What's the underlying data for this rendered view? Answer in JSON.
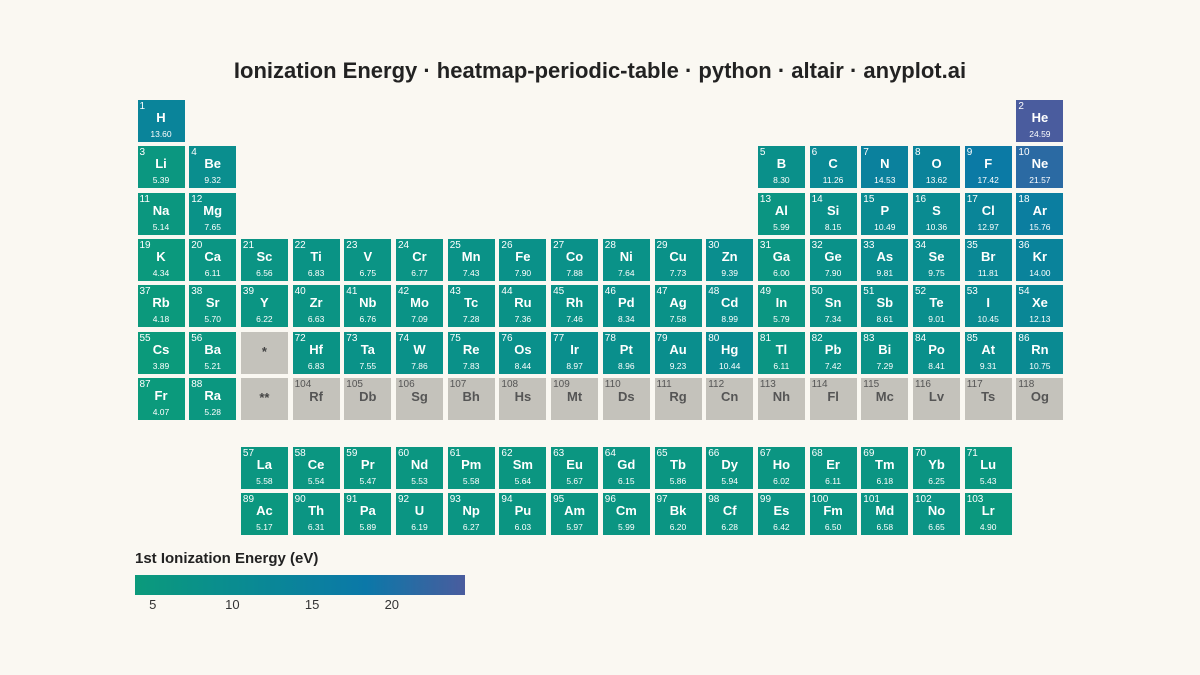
{
  "title": "Ionization Energy · heatmap-periodic-table · python · altair · anyplot.ai",
  "colors": {
    "low": "#0B9A7B",
    "mid": "#0B78A8",
    "high": "#4A5C9E",
    "missing": "#C4C2BB",
    "background": "#FAF8F2"
  },
  "legend": {
    "title": "1st Ionization Energy (eV)",
    "ticks": [
      5,
      10,
      15,
      20
    ],
    "range": [
      3.89,
      24.59
    ]
  },
  "chart_data": {
    "type": "heatmap",
    "title": "Ionization Energy · heatmap-periodic-table · python · altair · anyplot.ai",
    "value_label": "1st Ionization Energy (eV)",
    "value_range": [
      3.89,
      24.59
    ],
    "lanthanide_marker": "*",
    "actinide_marker": "**",
    "elements": [
      {
        "z": 1,
        "symbol": "H",
        "group": 1,
        "period": 1,
        "value": 13.6
      },
      {
        "z": 2,
        "symbol": "He",
        "group": 18,
        "period": 1,
        "value": 24.59
      },
      {
        "z": 3,
        "symbol": "Li",
        "group": 1,
        "period": 2,
        "value": 5.39
      },
      {
        "z": 4,
        "symbol": "Be",
        "group": 2,
        "period": 2,
        "value": 9.32
      },
      {
        "z": 5,
        "symbol": "B",
        "group": 13,
        "period": 2,
        "value": 8.3
      },
      {
        "z": 6,
        "symbol": "C",
        "group": 14,
        "period": 2,
        "value": 11.26
      },
      {
        "z": 7,
        "symbol": "N",
        "group": 15,
        "period": 2,
        "value": 14.53
      },
      {
        "z": 8,
        "symbol": "O",
        "group": 16,
        "period": 2,
        "value": 13.62
      },
      {
        "z": 9,
        "symbol": "F",
        "group": 17,
        "period": 2,
        "value": 17.42
      },
      {
        "z": 10,
        "symbol": "Ne",
        "group": 18,
        "period": 2,
        "value": 21.57
      },
      {
        "z": 11,
        "symbol": "Na",
        "group": 1,
        "period": 3,
        "value": 5.14
      },
      {
        "z": 12,
        "symbol": "Mg",
        "group": 2,
        "period": 3,
        "value": 7.65
      },
      {
        "z": 13,
        "symbol": "Al",
        "group": 13,
        "period": 3,
        "value": 5.99
      },
      {
        "z": 14,
        "symbol": "Si",
        "group": 14,
        "period": 3,
        "value": 8.15
      },
      {
        "z": 15,
        "symbol": "P",
        "group": 15,
        "period": 3,
        "value": 10.49
      },
      {
        "z": 16,
        "symbol": "S",
        "group": 16,
        "period": 3,
        "value": 10.36
      },
      {
        "z": 17,
        "symbol": "Cl",
        "group": 17,
        "period": 3,
        "value": 12.97
      },
      {
        "z": 18,
        "symbol": "Ar",
        "group": 18,
        "period": 3,
        "value": 15.76
      },
      {
        "z": 19,
        "symbol": "K",
        "group": 1,
        "period": 4,
        "value": 4.34
      },
      {
        "z": 20,
        "symbol": "Ca",
        "group": 2,
        "period": 4,
        "value": 6.11
      },
      {
        "z": 21,
        "symbol": "Sc",
        "group": 3,
        "period": 4,
        "value": 6.56
      },
      {
        "z": 22,
        "symbol": "Ti",
        "group": 4,
        "period": 4,
        "value": 6.83
      },
      {
        "z": 23,
        "symbol": "V",
        "group": 5,
        "period": 4,
        "value": 6.75
      },
      {
        "z": 24,
        "symbol": "Cr",
        "group": 6,
        "period": 4,
        "value": 6.77
      },
      {
        "z": 25,
        "symbol": "Mn",
        "group": 7,
        "period": 4,
        "value": 7.43
      },
      {
        "z": 26,
        "symbol": "Fe",
        "group": 8,
        "period": 4,
        "value": 7.9
      },
      {
        "z": 27,
        "symbol": "Co",
        "group": 9,
        "period": 4,
        "value": 7.88
      },
      {
        "z": 28,
        "symbol": "Ni",
        "group": 10,
        "period": 4,
        "value": 7.64
      },
      {
        "z": 29,
        "symbol": "Cu",
        "group": 11,
        "period": 4,
        "value": 7.73
      },
      {
        "z": 30,
        "symbol": "Zn",
        "group": 12,
        "period": 4,
        "value": 9.39
      },
      {
        "z": 31,
        "symbol": "Ga",
        "group": 13,
        "period": 4,
        "value": 6.0
      },
      {
        "z": 32,
        "symbol": "Ge",
        "group": 14,
        "period": 4,
        "value": 7.9
      },
      {
        "z": 33,
        "symbol": "As",
        "group": 15,
        "period": 4,
        "value": 9.81
      },
      {
        "z": 34,
        "symbol": "Se",
        "group": 16,
        "period": 4,
        "value": 9.75
      },
      {
        "z": 35,
        "symbol": "Br",
        "group": 17,
        "period": 4,
        "value": 11.81
      },
      {
        "z": 36,
        "symbol": "Kr",
        "group": 18,
        "period": 4,
        "value": 14.0
      },
      {
        "z": 37,
        "symbol": "Rb",
        "group": 1,
        "period": 5,
        "value": 4.18
      },
      {
        "z": 38,
        "symbol": "Sr",
        "group": 2,
        "period": 5,
        "value": 5.7
      },
      {
        "z": 39,
        "symbol": "Y",
        "group": 3,
        "period": 5,
        "value": 6.22
      },
      {
        "z": 40,
        "symbol": "Zr",
        "group": 4,
        "period": 5,
        "value": 6.63
      },
      {
        "z": 41,
        "symbol": "Nb",
        "group": 5,
        "period": 5,
        "value": 6.76
      },
      {
        "z": 42,
        "symbol": "Mo",
        "group": 6,
        "period": 5,
        "value": 7.09
      },
      {
        "z": 43,
        "symbol": "Tc",
        "group": 7,
        "period": 5,
        "value": 7.28
      },
      {
        "z": 44,
        "symbol": "Ru",
        "group": 8,
        "period": 5,
        "value": 7.36
      },
      {
        "z": 45,
        "symbol": "Rh",
        "group": 9,
        "period": 5,
        "value": 7.46
      },
      {
        "z": 46,
        "symbol": "Pd",
        "group": 10,
        "period": 5,
        "value": 8.34
      },
      {
        "z": 47,
        "symbol": "Ag",
        "group": 11,
        "period": 5,
        "value": 7.58
      },
      {
        "z": 48,
        "symbol": "Cd",
        "group": 12,
        "period": 5,
        "value": 8.99
      },
      {
        "z": 49,
        "symbol": "In",
        "group": 13,
        "period": 5,
        "value": 5.79
      },
      {
        "z": 50,
        "symbol": "Sn",
        "group": 14,
        "period": 5,
        "value": 7.34
      },
      {
        "z": 51,
        "symbol": "Sb",
        "group": 15,
        "period": 5,
        "value": 8.61
      },
      {
        "z": 52,
        "symbol": "Te",
        "group": 16,
        "period": 5,
        "value": 9.01
      },
      {
        "z": 53,
        "symbol": "I",
        "group": 17,
        "period": 5,
        "value": 10.45
      },
      {
        "z": 54,
        "symbol": "Xe",
        "group": 18,
        "period": 5,
        "value": 12.13
      },
      {
        "z": 55,
        "symbol": "Cs",
        "group": 1,
        "period": 6,
        "value": 3.89
      },
      {
        "z": 56,
        "symbol": "Ba",
        "group": 2,
        "period": 6,
        "value": 5.21
      },
      {
        "z": 72,
        "symbol": "Hf",
        "group": 4,
        "period": 6,
        "value": 6.83
      },
      {
        "z": 73,
        "symbol": "Ta",
        "group": 5,
        "period": 6,
        "value": 7.55
      },
      {
        "z": 74,
        "symbol": "W",
        "group": 6,
        "period": 6,
        "value": 7.86
      },
      {
        "z": 75,
        "symbol": "Re",
        "group": 7,
        "period": 6,
        "value": 7.83
      },
      {
        "z": 76,
        "symbol": "Os",
        "group": 8,
        "period": 6,
        "value": 8.44
      },
      {
        "z": 77,
        "symbol": "Ir",
        "group": 9,
        "period": 6,
        "value": 8.97
      },
      {
        "z": 78,
        "symbol": "Pt",
        "group": 10,
        "period": 6,
        "value": 8.96
      },
      {
        "z": 79,
        "symbol": "Au",
        "group": 11,
        "period": 6,
        "value": 9.23
      },
      {
        "z": 80,
        "symbol": "Hg",
        "group": 12,
        "period": 6,
        "value": 10.44
      },
      {
        "z": 81,
        "symbol": "Tl",
        "group": 13,
        "period": 6,
        "value": 6.11
      },
      {
        "z": 82,
        "symbol": "Pb",
        "group": 14,
        "period": 6,
        "value": 7.42
      },
      {
        "z": 83,
        "symbol": "Bi",
        "group": 15,
        "period": 6,
        "value": 7.29
      },
      {
        "z": 84,
        "symbol": "Po",
        "group": 16,
        "period": 6,
        "value": 8.41
      },
      {
        "z": 85,
        "symbol": "At",
        "group": 17,
        "period": 6,
        "value": 9.31
      },
      {
        "z": 86,
        "symbol": "Rn",
        "group": 18,
        "period": 6,
        "value": 10.75
      },
      {
        "z": 87,
        "symbol": "Fr",
        "group": 1,
        "period": 7,
        "value": 4.07
      },
      {
        "z": 88,
        "symbol": "Ra",
        "group": 2,
        "period": 7,
        "value": 5.28
      },
      {
        "z": 104,
        "symbol": "Rf",
        "group": 4,
        "period": 7,
        "value": null
      },
      {
        "z": 105,
        "symbol": "Db",
        "group": 5,
        "period": 7,
        "value": null
      },
      {
        "z": 106,
        "symbol": "Sg",
        "group": 6,
        "period": 7,
        "value": null
      },
      {
        "z": 107,
        "symbol": "Bh",
        "group": 7,
        "period": 7,
        "value": null
      },
      {
        "z": 108,
        "symbol": "Hs",
        "group": 8,
        "period": 7,
        "value": null
      },
      {
        "z": 109,
        "symbol": "Mt",
        "group": 9,
        "period": 7,
        "value": null
      },
      {
        "z": 110,
        "symbol": "Ds",
        "group": 10,
        "period": 7,
        "value": null
      },
      {
        "z": 111,
        "symbol": "Rg",
        "group": 11,
        "period": 7,
        "value": null
      },
      {
        "z": 112,
        "symbol": "Cn",
        "group": 12,
        "period": 7,
        "value": null
      },
      {
        "z": 113,
        "symbol": "Nh",
        "group": 13,
        "period": 7,
        "value": null
      },
      {
        "z": 114,
        "symbol": "Fl",
        "group": 14,
        "period": 7,
        "value": null
      },
      {
        "z": 115,
        "symbol": "Mc",
        "group": 15,
        "period": 7,
        "value": null
      },
      {
        "z": 116,
        "symbol": "Lv",
        "group": 16,
        "period": 7,
        "value": null
      },
      {
        "z": 117,
        "symbol": "Ts",
        "group": 17,
        "period": 7,
        "value": null
      },
      {
        "z": 118,
        "symbol": "Og",
        "group": 18,
        "period": 7,
        "value": null
      },
      {
        "z": 57,
        "symbol": "La",
        "series": "lanthanide",
        "index": 0,
        "value": 5.58
      },
      {
        "z": 58,
        "symbol": "Ce",
        "series": "lanthanide",
        "index": 1,
        "value": 5.54
      },
      {
        "z": 59,
        "symbol": "Pr",
        "series": "lanthanide",
        "index": 2,
        "value": 5.47
      },
      {
        "z": 60,
        "symbol": "Nd",
        "series": "lanthanide",
        "index": 3,
        "value": 5.53
      },
      {
        "z": 61,
        "symbol": "Pm",
        "series": "lanthanide",
        "index": 4,
        "value": 5.58
      },
      {
        "z": 62,
        "symbol": "Sm",
        "series": "lanthanide",
        "index": 5,
        "value": 5.64
      },
      {
        "z": 63,
        "symbol": "Eu",
        "series": "lanthanide",
        "index": 6,
        "value": 5.67
      },
      {
        "z": 64,
        "symbol": "Gd",
        "series": "lanthanide",
        "index": 7,
        "value": 6.15
      },
      {
        "z": 65,
        "symbol": "Tb",
        "series": "lanthanide",
        "index": 8,
        "value": 5.86
      },
      {
        "z": 66,
        "symbol": "Dy",
        "series": "lanthanide",
        "index": 9,
        "value": 5.94
      },
      {
        "z": 67,
        "symbol": "Ho",
        "series": "lanthanide",
        "index": 10,
        "value": 6.02
      },
      {
        "z": 68,
        "symbol": "Er",
        "series": "lanthanide",
        "index": 11,
        "value": 6.11
      },
      {
        "z": 69,
        "symbol": "Tm",
        "series": "lanthanide",
        "index": 12,
        "value": 6.18
      },
      {
        "z": 70,
        "symbol": "Yb",
        "series": "lanthanide",
        "index": 13,
        "value": 6.25
      },
      {
        "z": 71,
        "symbol": "Lu",
        "series": "lanthanide",
        "index": 14,
        "value": 5.43
      },
      {
        "z": 89,
        "symbol": "Ac",
        "series": "actinide",
        "index": 0,
        "value": 5.17
      },
      {
        "z": 90,
        "symbol": "Th",
        "series": "actinide",
        "index": 1,
        "value": 6.31
      },
      {
        "z": 91,
        "symbol": "Pa",
        "series": "actinide",
        "index": 2,
        "value": 5.89
      },
      {
        "z": 92,
        "symbol": "U",
        "series": "actinide",
        "index": 3,
        "value": 6.19
      },
      {
        "z": 93,
        "symbol": "Np",
        "series": "actinide",
        "index": 4,
        "value": 6.27
      },
      {
        "z": 94,
        "symbol": "Pu",
        "series": "actinide",
        "index": 5,
        "value": 6.03
      },
      {
        "z": 95,
        "symbol": "Am",
        "series": "actinide",
        "index": 6,
        "value": 5.97
      },
      {
        "z": 96,
        "symbol": "Cm",
        "series": "actinide",
        "index": 7,
        "value": 5.99
      },
      {
        "z": 97,
        "symbol": "Bk",
        "series": "actinide",
        "index": 8,
        "value": 6.2
      },
      {
        "z": 98,
        "symbol": "Cf",
        "series": "actinide",
        "index": 9,
        "value": 6.28
      },
      {
        "z": 99,
        "symbol": "Es",
        "series": "actinide",
        "index": 10,
        "value": 6.42
      },
      {
        "z": 100,
        "symbol": "Fm",
        "series": "actinide",
        "index": 11,
        "value": 6.5
      },
      {
        "z": 101,
        "symbol": "Md",
        "series": "actinide",
        "index": 12,
        "value": 6.58
      },
      {
        "z": 102,
        "symbol": "No",
        "series": "actinide",
        "index": 13,
        "value": 6.65
      },
      {
        "z": 103,
        "symbol": "Lr",
        "series": "actinide",
        "index": 14,
        "value": 4.9
      }
    ]
  }
}
